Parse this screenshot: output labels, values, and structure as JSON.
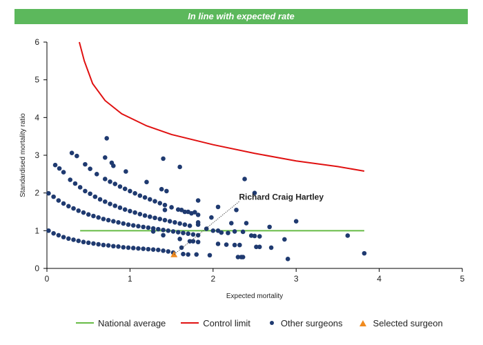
{
  "banner": {
    "text": "In line with expected rate"
  },
  "colors": {
    "banner": "#5cb85c",
    "national_average": "#66bb44",
    "control_limit": "#e01010",
    "other_surgeons": "#1f3a70",
    "selected_surgeon": "#f08a1e"
  },
  "chart_data": {
    "type": "scatter",
    "xlabel": "Expected mortality",
    "ylabel": "Standardised mortality ratio",
    "xlim": [
      0,
      5
    ],
    "ylim": [
      0,
      6
    ],
    "xticks": [
      "0",
      "1",
      "2",
      "3",
      "4",
      "5"
    ],
    "yticks": [
      "0",
      "1",
      "2",
      "3",
      "4",
      "5",
      "6"
    ],
    "grid": false,
    "legend_position": "bottom",
    "series": [
      {
        "name": "National average",
        "kind": "line",
        "points": [
          [
            0.4,
            1.0
          ],
          [
            3.82,
            1.0
          ]
        ]
      },
      {
        "name": "Control limit",
        "kind": "line",
        "points": [
          [
            0.39,
            6.0
          ],
          [
            0.45,
            5.5
          ],
          [
            0.55,
            4.9
          ],
          [
            0.7,
            4.45
          ],
          [
            0.9,
            4.1
          ],
          [
            1.2,
            3.78
          ],
          [
            1.5,
            3.55
          ],
          [
            2.0,
            3.28
          ],
          [
            2.5,
            3.05
          ],
          [
            3.0,
            2.85
          ],
          [
            3.5,
            2.7
          ],
          [
            3.82,
            2.58
          ]
        ]
      },
      {
        "name": "Other surgeons",
        "kind": "points",
        "points": [
          [
            0.02,
            1.0
          ],
          [
            0.08,
            0.93
          ],
          [
            0.14,
            0.88
          ],
          [
            0.2,
            0.83
          ],
          [
            0.26,
            0.79
          ],
          [
            0.32,
            0.76
          ],
          [
            0.38,
            0.73
          ],
          [
            0.44,
            0.7
          ],
          [
            0.5,
            0.68
          ],
          [
            0.56,
            0.66
          ],
          [
            0.62,
            0.64
          ],
          [
            0.68,
            0.62
          ],
          [
            0.74,
            0.61
          ],
          [
            0.8,
            0.59
          ],
          [
            0.86,
            0.58
          ],
          [
            0.92,
            0.56
          ],
          [
            0.98,
            0.55
          ],
          [
            1.04,
            0.54
          ],
          [
            1.1,
            0.53
          ],
          [
            1.16,
            0.52
          ],
          [
            1.22,
            0.51
          ],
          [
            1.28,
            0.5
          ],
          [
            1.34,
            0.49
          ],
          [
            1.4,
            0.47
          ],
          [
            1.46,
            0.45
          ],
          [
            1.52,
            0.42
          ],
          [
            0.02,
            1.99
          ],
          [
            0.08,
            1.9
          ],
          [
            0.14,
            1.8
          ],
          [
            0.2,
            1.72
          ],
          [
            0.26,
            1.65
          ],
          [
            0.32,
            1.59
          ],
          [
            0.38,
            1.53
          ],
          [
            0.44,
            1.48
          ],
          [
            0.5,
            1.43
          ],
          [
            0.56,
            1.39
          ],
          [
            0.62,
            1.35
          ],
          [
            0.68,
            1.31
          ],
          [
            0.74,
            1.28
          ],
          [
            0.8,
            1.25
          ],
          [
            0.86,
            1.22
          ],
          [
            0.92,
            1.19
          ],
          [
            0.98,
            1.16
          ],
          [
            1.04,
            1.14
          ],
          [
            1.1,
            1.12
          ],
          [
            1.16,
            1.1
          ],
          [
            1.22,
            1.08
          ],
          [
            1.28,
            1.06
          ],
          [
            1.34,
            1.04
          ],
          [
            1.4,
            1.02
          ],
          [
            1.46,
            1.0
          ],
          [
            1.52,
            0.98
          ],
          [
            1.58,
            0.96
          ],
          [
            1.64,
            0.94
          ],
          [
            1.7,
            0.92
          ],
          [
            1.76,
            0.9
          ],
          [
            1.82,
            0.88
          ],
          [
            0.1,
            2.74
          ],
          [
            0.15,
            2.65
          ],
          [
            0.2,
            2.55
          ],
          [
            0.28,
            2.35
          ],
          [
            0.34,
            2.25
          ],
          [
            0.4,
            2.15
          ],
          [
            0.46,
            2.05
          ],
          [
            0.52,
            1.98
          ],
          [
            0.58,
            1.9
          ],
          [
            0.64,
            1.83
          ],
          [
            0.7,
            1.77
          ],
          [
            0.76,
            1.71
          ],
          [
            0.82,
            1.66
          ],
          [
            0.88,
            1.61
          ],
          [
            0.94,
            1.56
          ],
          [
            1.0,
            1.52
          ],
          [
            1.06,
            1.48
          ],
          [
            1.12,
            1.44
          ],
          [
            1.18,
            1.4
          ],
          [
            1.24,
            1.37
          ],
          [
            1.3,
            1.34
          ],
          [
            1.36,
            1.31
          ],
          [
            1.42,
            1.28
          ],
          [
            1.48,
            1.25
          ],
          [
            1.54,
            1.22
          ],
          [
            1.6,
            1.19
          ],
          [
            1.66,
            1.16
          ],
          [
            1.72,
            1.13
          ],
          [
            0.3,
            3.06
          ],
          [
            0.36,
            2.98
          ],
          [
            0.46,
            2.76
          ],
          [
            0.52,
            2.64
          ],
          [
            0.6,
            2.5
          ],
          [
            0.7,
            2.37
          ],
          [
            0.76,
            2.3
          ],
          [
            0.82,
            2.24
          ],
          [
            0.88,
            2.17
          ],
          [
            0.94,
            2.11
          ],
          [
            1.0,
            2.05
          ],
          [
            1.06,
            1.99
          ],
          [
            1.12,
            1.93
          ],
          [
            1.18,
            1.88
          ],
          [
            1.24,
            1.83
          ],
          [
            1.3,
            1.78
          ],
          [
            1.36,
            1.73
          ],
          [
            1.42,
            1.68
          ],
          [
            1.5,
            1.62
          ],
          [
            1.58,
            1.56
          ],
          [
            1.66,
            1.5
          ],
          [
            1.74,
            1.46
          ],
          [
            1.82,
            1.42
          ],
          [
            0.72,
            3.45
          ],
          [
            0.7,
            2.94
          ],
          [
            0.78,
            2.8
          ],
          [
            0.8,
            2.72
          ],
          [
            0.95,
            2.57
          ],
          [
            1.2,
            2.29
          ],
          [
            1.4,
            2.91
          ],
          [
            1.6,
            2.69
          ],
          [
            1.38,
            2.1
          ],
          [
            1.44,
            2.05
          ],
          [
            1.42,
            1.55
          ],
          [
            1.62,
            1.55
          ],
          [
            1.7,
            1.5
          ],
          [
            1.82,
            1.8
          ],
          [
            1.78,
            1.49
          ],
          [
            1.28,
            0.98
          ],
          [
            1.4,
            0.88
          ],
          [
            1.6,
            0.78
          ],
          [
            1.72,
            0.72
          ],
          [
            1.76,
            0.72
          ],
          [
            1.82,
            0.7
          ],
          [
            1.64,
            0.38
          ],
          [
            1.7,
            0.37
          ],
          [
            1.8,
            0.37
          ],
          [
            1.96,
            0.35
          ],
          [
            1.62,
            0.55
          ],
          [
            1.82,
            1.22
          ],
          [
            1.82,
            1.16
          ],
          [
            1.92,
            1.05
          ],
          [
            1.98,
            1.35
          ],
          [
            2.0,
            1.0
          ],
          [
            2.06,
            1.0
          ],
          [
            2.1,
            0.95
          ],
          [
            2.06,
            1.63
          ],
          [
            2.18,
            0.94
          ],
          [
            2.26,
            0.98
          ],
          [
            2.36,
            0.97
          ],
          [
            2.22,
            1.2
          ],
          [
            2.28,
            1.55
          ],
          [
            2.26,
            0.62
          ],
          [
            2.3,
            0.3
          ],
          [
            2.32,
            0.62
          ],
          [
            2.34,
            0.3
          ],
          [
            2.36,
            0.3
          ],
          [
            2.06,
            0.65
          ],
          [
            2.16,
            0.63
          ],
          [
            2.4,
            1.2
          ],
          [
            2.46,
            0.87
          ],
          [
            2.5,
            0.86
          ],
          [
            2.56,
            0.85
          ],
          [
            2.38,
            2.37
          ],
          [
            2.5,
            2.0
          ],
          [
            2.52,
            0.57
          ],
          [
            2.56,
            0.57
          ],
          [
            2.7,
            0.55
          ],
          [
            2.68,
            1.1
          ],
          [
            2.86,
            0.77
          ],
          [
            2.9,
            0.25
          ],
          [
            3.0,
            1.25
          ],
          [
            3.62,
            0.87
          ],
          [
            3.82,
            0.4
          ]
        ]
      },
      {
        "name": "Selected surgeon",
        "kind": "triangle",
        "points": [
          [
            1.53,
            0.37
          ]
        ]
      }
    ],
    "annotations": [
      {
        "text": "Richard Craig Hartley",
        "target": [
          1.53,
          0.37
        ],
        "label_at": [
          2.32,
          1.82
        ]
      }
    ]
  }
}
